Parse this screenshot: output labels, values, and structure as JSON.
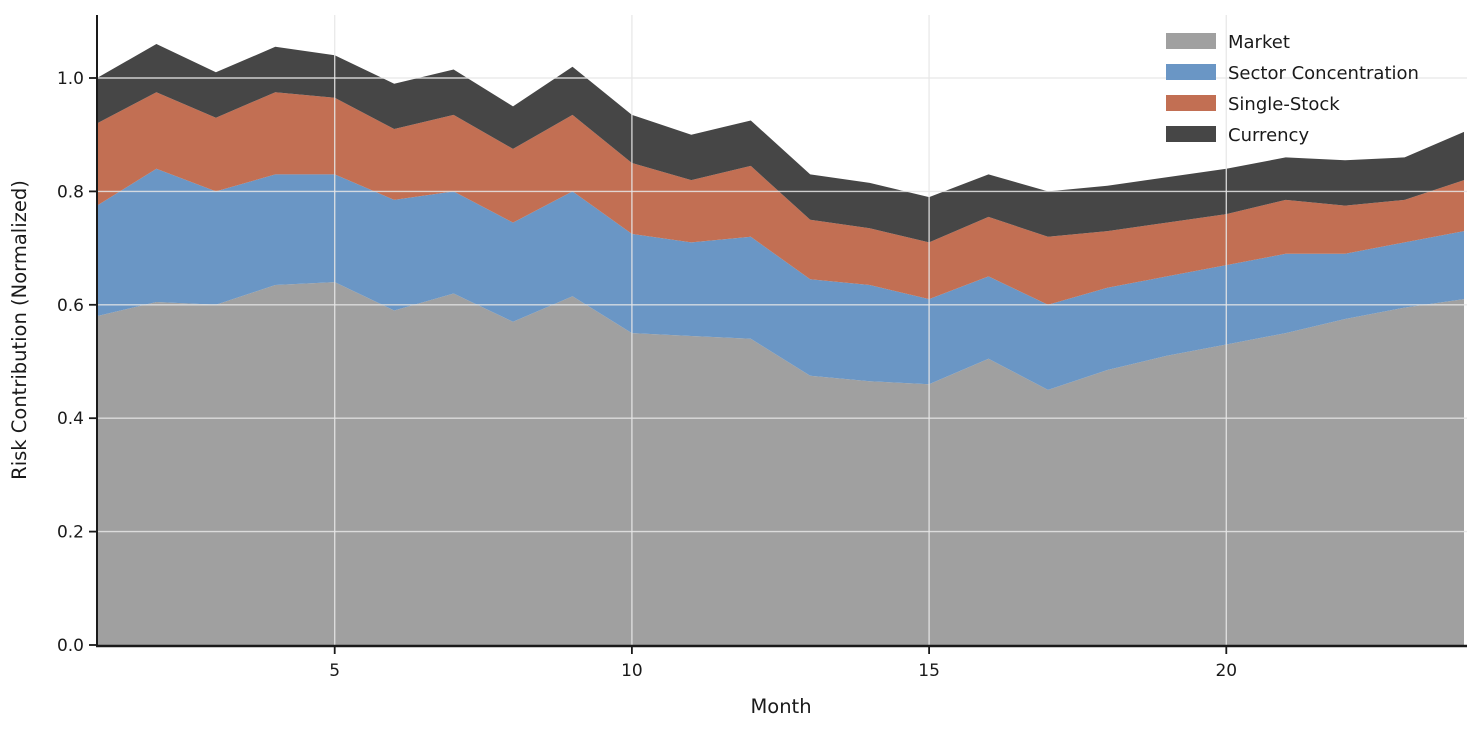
{
  "chart_data": {
    "type": "area",
    "stacked": true,
    "title": "",
    "xlabel": "Month",
    "ylabel": "Risk Contribution (Normalized)",
    "x": [
      1,
      2,
      3,
      4,
      5,
      6,
      7,
      8,
      9,
      10,
      11,
      12,
      13,
      14,
      15,
      16,
      17,
      18,
      19,
      20,
      21,
      22,
      23,
      24
    ],
    "series": [
      {
        "name": "Market",
        "color": "#a0a0a0",
        "values": [
          0.58,
          0.605,
          0.6,
          0.635,
          0.64,
          0.59,
          0.62,
          0.57,
          0.615,
          0.55,
          0.545,
          0.54,
          0.475,
          0.465,
          0.46,
          0.505,
          0.45,
          0.485,
          0.51,
          0.53,
          0.55,
          0.575,
          0.595,
          0.61
        ]
      },
      {
        "name": "Sector Concentration",
        "color": "#6a96c5",
        "values": [
          0.195,
          0.235,
          0.2,
          0.195,
          0.19,
          0.195,
          0.18,
          0.175,
          0.185,
          0.175,
          0.165,
          0.18,
          0.17,
          0.17,
          0.15,
          0.145,
          0.15,
          0.145,
          0.14,
          0.14,
          0.14,
          0.115,
          0.115,
          0.12
        ]
      },
      {
        "name": "Single-Stock",
        "color": "#c26f53",
        "values": [
          0.145,
          0.135,
          0.13,
          0.145,
          0.135,
          0.125,
          0.135,
          0.13,
          0.135,
          0.125,
          0.11,
          0.125,
          0.105,
          0.1,
          0.1,
          0.105,
          0.12,
          0.1,
          0.095,
          0.09,
          0.095,
          0.085,
          0.075,
          0.09
        ]
      },
      {
        "name": "Currency",
        "color": "#464646",
        "values": [
          0.08,
          0.085,
          0.08,
          0.08,
          0.075,
          0.08,
          0.08,
          0.075,
          0.085,
          0.085,
          0.08,
          0.08,
          0.08,
          0.08,
          0.08,
          0.075,
          0.08,
          0.08,
          0.08,
          0.08,
          0.075,
          0.08,
          0.075,
          0.085
        ]
      }
    ],
    "xticks": [
      5,
      10,
      15,
      20
    ],
    "ytick_labels": [
      "0.0",
      "0.2",
      "0.4",
      "0.6",
      "0.8",
      "1.0"
    ],
    "ytick_values": [
      0.0,
      0.2,
      0.4,
      0.6,
      0.8,
      1.0
    ],
    "xlim": [
      1,
      24
    ],
    "ylim": [
      0,
      1.111
    ],
    "grid": true,
    "legend_position": "upper right"
  }
}
